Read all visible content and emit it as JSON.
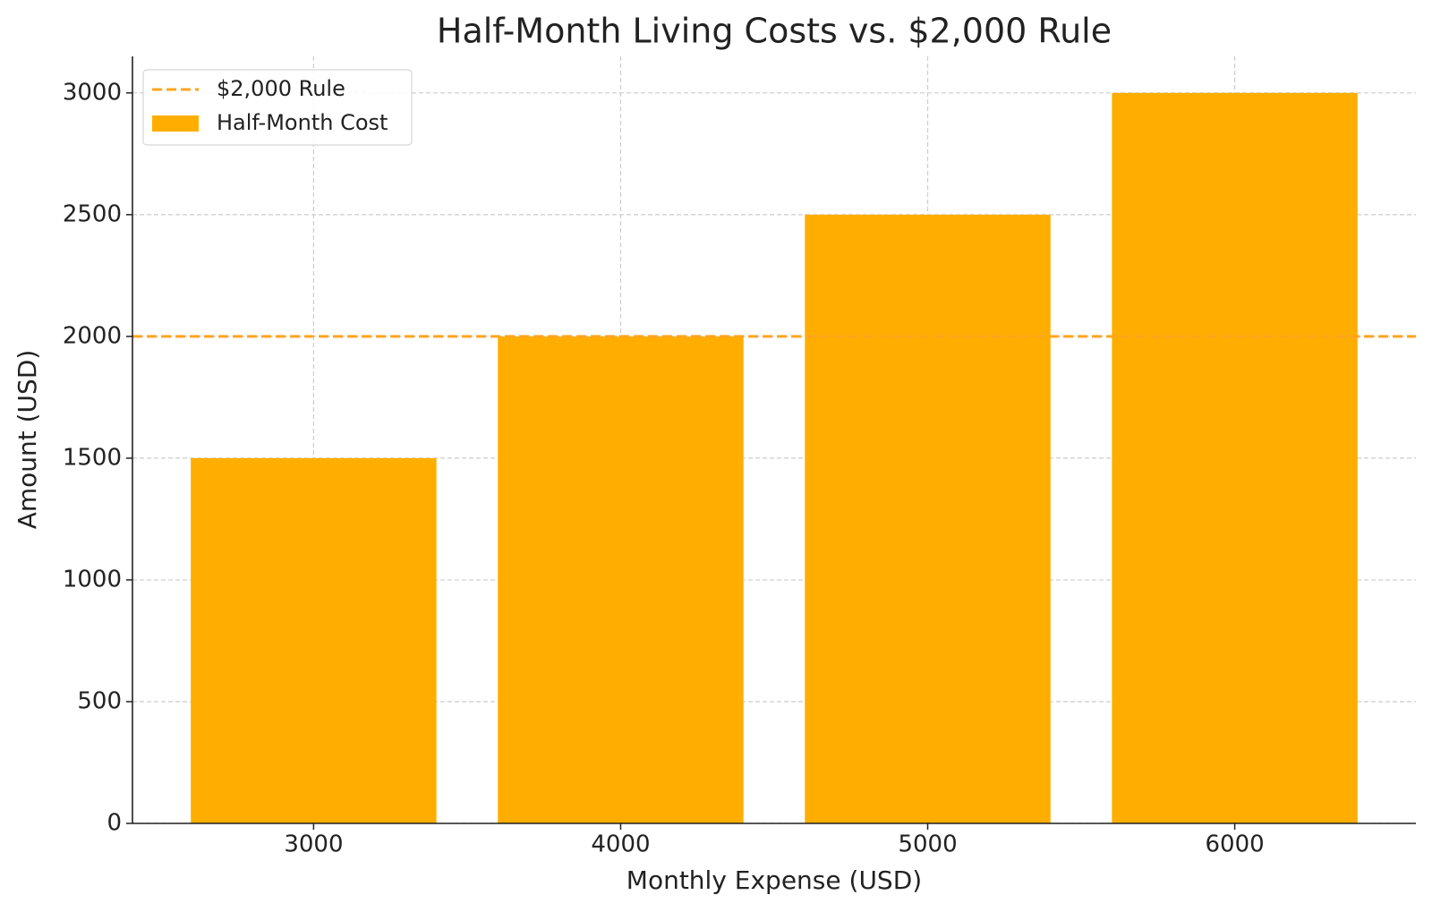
{
  "chart_data": {
    "type": "bar",
    "title": "Half-Month Living Costs vs. $2,000 Rule",
    "x_label": "Monthly Expense (USD)",
    "y_label": "Amount (USD)",
    "x": [
      3000,
      4000,
      5000,
      6000
    ],
    "series": [
      {
        "name": "Half-Month Cost",
        "color": "#ffae00",
        "values": [
          1500,
          2000,
          2500,
          3000
        ]
      }
    ],
    "reference_line": {
      "name": "$2,000 Rule",
      "value": 2000,
      "color": "#ffa51e",
      "dashed": true
    },
    "xlim": [
      2410,
      6590
    ],
    "xticks": [
      3000,
      4000,
      5000,
      6000
    ],
    "ylim": [
      0,
      3150
    ],
    "yticks": [
      0,
      500,
      1000,
      1500,
      2000,
      2500,
      3000
    ],
    "grid": true,
    "legend": "upper left"
  }
}
